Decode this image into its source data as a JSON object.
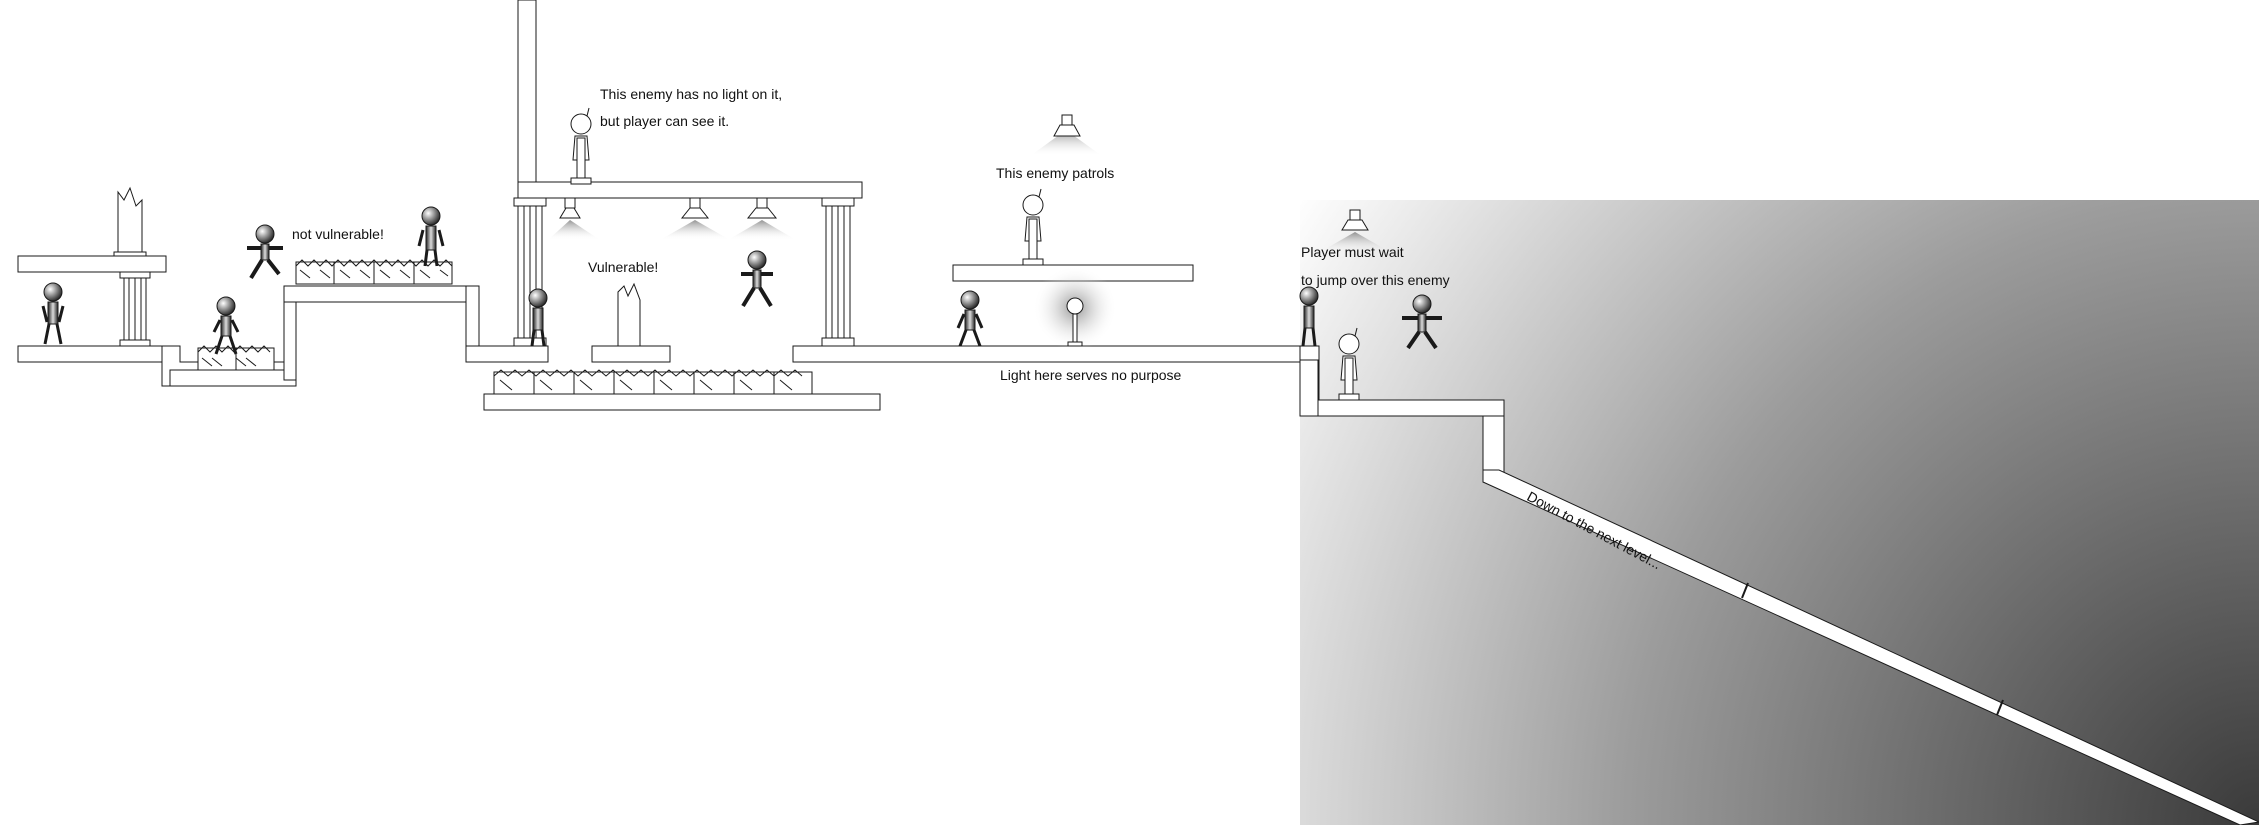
{
  "annotations": {
    "no_light_line1": "This enemy has no light on it,",
    "no_light_line2": "but player can see it.",
    "not_vulnerable": "not vulnerable!",
    "vulnerable": "Vulnerable!",
    "patrols": "This enemy patrols",
    "light_no_purpose": "Light here serves no purpose",
    "wait_line1": "Player must wait",
    "wait_line2": "to jump over this enemy",
    "down_next": "Down to the next level..."
  },
  "colors": {
    "background": "#ffffff",
    "outline": "#1a1a1a",
    "gradient_dark": "#3a3a3a",
    "light_glow": "#9a9a9a"
  }
}
